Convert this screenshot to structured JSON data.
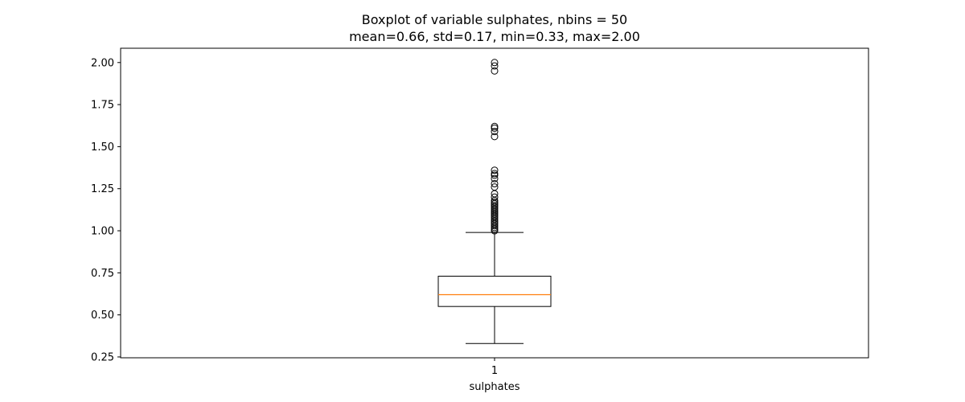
{
  "chart_data": {
    "type": "boxplot",
    "title": "Boxplot of variable sulphates, nbins = 50",
    "subtitle": "mean=0.66, std=0.17, min=0.33, max=2.00",
    "xlabel": "sulphates",
    "ylabel": "",
    "categories": [
      "1"
    ],
    "ylim": [
      0.245,
      2.085
    ],
    "y_ticks": [
      0.25,
      0.5,
      0.75,
      1.0,
      1.25,
      1.5,
      1.75,
      2.0
    ],
    "y_tick_labels": [
      "0.25",
      "0.50",
      "0.75",
      "1.00",
      "1.25",
      "1.50",
      "1.75",
      "2.00"
    ],
    "grid": false,
    "box": {
      "whisker_low": 0.33,
      "q1": 0.55,
      "median": 0.62,
      "q3": 0.73,
      "whisker_high": 0.99
    },
    "outliers": [
      1.0,
      1.01,
      1.02,
      1.03,
      1.04,
      1.05,
      1.06,
      1.07,
      1.08,
      1.09,
      1.1,
      1.11,
      1.12,
      1.13,
      1.14,
      1.15,
      1.16,
      1.17,
      1.18,
      1.2,
      1.22,
      1.26,
      1.28,
      1.31,
      1.33,
      1.34,
      1.36,
      1.56,
      1.59,
      1.61,
      1.62,
      1.95,
      1.98,
      2.0
    ],
    "colors": {
      "box": "#000000",
      "median": "#ff7f0e",
      "outlier": "#000000"
    }
  }
}
